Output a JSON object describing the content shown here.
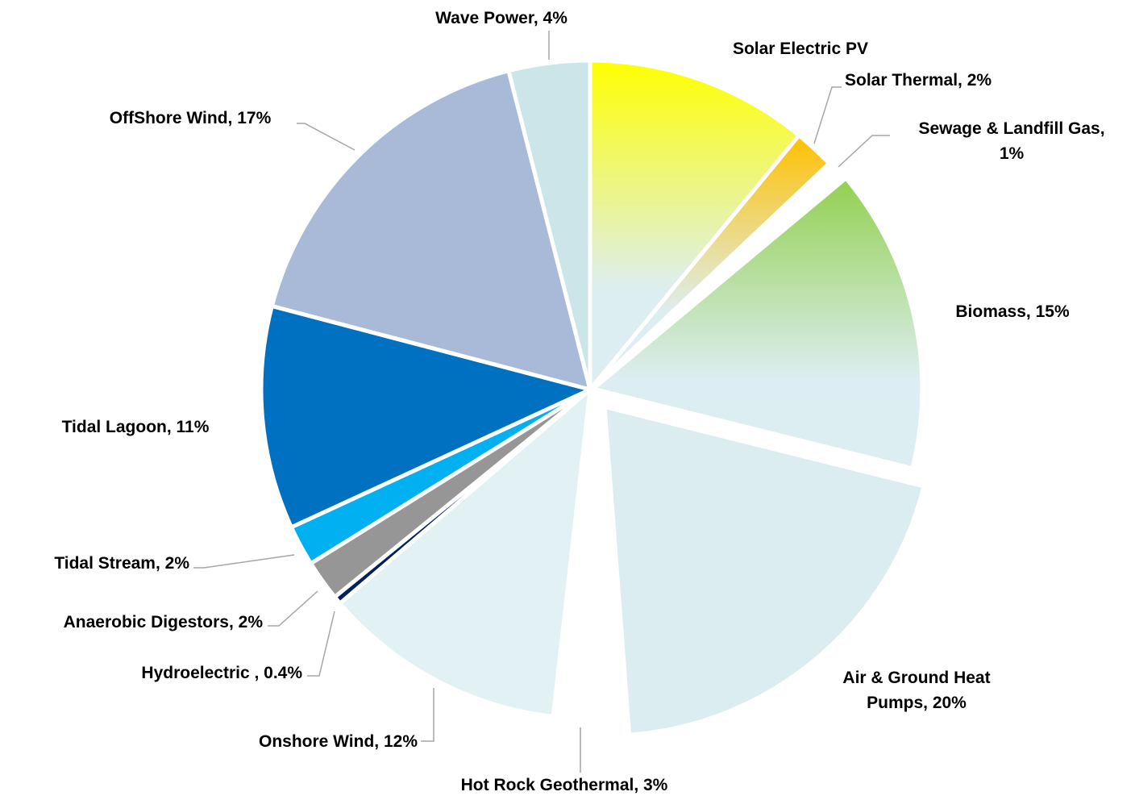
{
  "chart_data": {
    "type": "pie",
    "title": "",
    "slices": [
      {
        "name": "Solar Electric PV",
        "value": 11,
        "color": "#ffff00",
        "gradient": true,
        "label_lines": [
          "Solar Electric PV"
        ]
      },
      {
        "name": "Solar Thermal",
        "value": 2,
        "color": "#ffc000",
        "gradient": true,
        "label_lines": [
          "Solar Thermal, 2%"
        ]
      },
      {
        "name": "Sewage & Landfill Gas",
        "value": 1,
        "color": "#ffffff",
        "gradient": false,
        "label_lines": [
          "Sewage & Landfill Gas,",
          "1%"
        ]
      },
      {
        "name": "Biomass",
        "value": 15,
        "color": "#92d050",
        "gradient": true,
        "label_lines": [
          "Biomass, 15%"
        ]
      },
      {
        "name": "Air & Ground Heat Pumps",
        "value": 20,
        "color": "#dbedf0",
        "gradient": false,
        "label_lines": [
          "Air & Ground Heat",
          "Pumps, 20%"
        ]
      },
      {
        "name": "Hot Rock Geothermal",
        "value": 3,
        "color": "#ffffff",
        "gradient": false,
        "label_lines": [
          "Hot Rock Geothermal, 3%"
        ]
      },
      {
        "name": "Onshore Wind",
        "value": 12,
        "color": "#e2f1f3",
        "gradient": false,
        "label_lines": [
          "Onshore Wind, 12%"
        ]
      },
      {
        "name": "Hydroelectric",
        "value": 0.4,
        "color": "#002060",
        "gradient": false,
        "label_lines": [
          "Hydroelectric , 0.4%"
        ]
      },
      {
        "name": "Anaerobic Digestors",
        "value": 2,
        "color": "#969696",
        "gradient": false,
        "label_lines": [
          "Anaerobic Digestors, 2%"
        ]
      },
      {
        "name": "Tidal Stream",
        "value": 2,
        "color": "#00b0f0",
        "gradient": false,
        "label_lines": [
          "Tidal Stream, 2%"
        ]
      },
      {
        "name": "Tidal Lagoon",
        "value": 11,
        "color": "#0070c0",
        "gradient": false,
        "label_lines": [
          "Tidal Lagoon, 11%"
        ]
      },
      {
        "name": "OffShore Wind",
        "value": 17,
        "color": "#a9b9d8",
        "gradient": false,
        "label_lines": [
          "OffShore Wind, 17%"
        ]
      },
      {
        "name": "Wave Power",
        "value": 4,
        "color": "#cbe5e9",
        "gradient": false,
        "label_lines": [
          "Wave Power, 4%"
        ]
      }
    ]
  }
}
